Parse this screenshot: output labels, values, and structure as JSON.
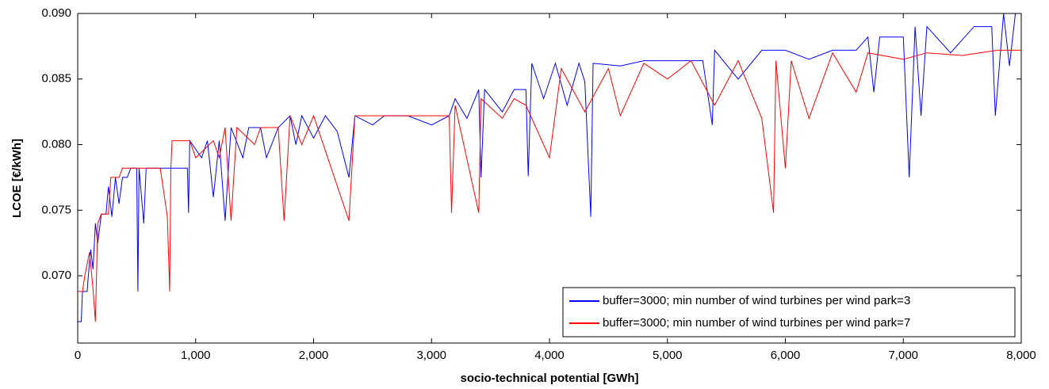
{
  "chart_data": {
    "type": "line",
    "x_label": "socio-technical potential [GWh]",
    "y_label": "LCOE [€/kWh]",
    "xlim": [
      0,
      8000
    ],
    "xticks": [
      0,
      {
        "value": 1000,
        "label": "1,000"
      },
      {
        "value": 2000,
        "label": "2,000"
      },
      {
        "value": 3000,
        "label": "3,000"
      },
      {
        "value": 4000,
        "label": "4,000"
      },
      {
        "value": 5000,
        "label": "5,000"
      },
      {
        "value": 6000,
        "label": "6,000"
      },
      {
        "value": 7000,
        "label": "7,000"
      },
      {
        "value": 8000,
        "label": "8,000"
      }
    ],
    "ylim": [
      0.06487,
      0.09
    ],
    "yticks": [
      {
        "value": 0.07,
        "label": "0.070"
      },
      0.075,
      {
        "value": 0.08,
        "label": "0.080"
      },
      0.085,
      {
        "value": 0.09,
        "label": "0.090"
      }
    ],
    "grid": false,
    "legend": "lower right",
    "series": [
      {
        "name": "buffer=3000; min number of wind turbines per wind park=3",
        "color": "#0000ff",
        "x": [
          0,
          30,
          40,
          80,
          90,
          110,
          130,
          150,
          170,
          200,
          240,
          260,
          290,
          320,
          350,
          380,
          420,
          450,
          500,
          510,
          520,
          560,
          580,
          700,
          780,
          850,
          930,
          940,
          950,
          1050,
          1100,
          1150,
          1200,
          1250,
          1300,
          1400,
          1450,
          1550,
          1600,
          1700,
          1800,
          1850,
          1900,
          2000,
          2100,
          2200,
          2300,
          2350,
          2500,
          2600,
          2800,
          3000,
          3150,
          3200,
          3300,
          3400,
          3420,
          3450,
          3600,
          3700,
          3800,
          3820,
          3850,
          3950,
          4050,
          4150,
          4250,
          4300,
          4350,
          4370,
          4600,
          4800,
          5000,
          5300,
          5380,
          5400,
          5600,
          5800,
          6000,
          6200,
          6400,
          6600,
          6700,
          6750,
          6800,
          7000,
          7050,
          7100,
          7150,
          7200,
          7400,
          7600,
          7750,
          7780,
          7850,
          7900,
          7950,
          8000
        ],
        "values": [
          0.0665,
          0.0665,
          0.0688,
          0.0688,
          0.07,
          0.072,
          0.0705,
          0.074,
          0.0725,
          0.0747,
          0.0747,
          0.0768,
          0.0745,
          0.0775,
          0.0755,
          0.0775,
          0.0775,
          0.0782,
          0.0782,
          0.0688,
          0.0782,
          0.074,
          0.0782,
          0.0782,
          0.0782,
          0.0782,
          0.0782,
          0.0748,
          0.0803,
          0.079,
          0.0803,
          0.076,
          0.0803,
          0.0742,
          0.0813,
          0.079,
          0.0813,
          0.0813,
          0.079,
          0.0813,
          0.0822,
          0.08,
          0.0822,
          0.0805,
          0.0822,
          0.081,
          0.0775,
          0.0822,
          0.0815,
          0.0822,
          0.0822,
          0.0815,
          0.0822,
          0.0835,
          0.082,
          0.0842,
          0.0775,
          0.0842,
          0.0825,
          0.0842,
          0.0842,
          0.0776,
          0.0862,
          0.0835,
          0.0862,
          0.083,
          0.0862,
          0.0848,
          0.0745,
          0.0862,
          0.086,
          0.0864,
          0.0864,
          0.0864,
          0.0815,
          0.0872,
          0.085,
          0.0872,
          0.0872,
          0.0865,
          0.0872,
          0.0872,
          0.0882,
          0.084,
          0.0882,
          0.0882,
          0.0775,
          0.089,
          0.0822,
          0.089,
          0.087,
          0.089,
          0.089,
          0.0822,
          0.09,
          0.086,
          0.09,
          0.09
        ]
      },
      {
        "name": "buffer=3000; min number of wind turbines per wind park=7",
        "color": "#ff0000",
        "x": [
          0,
          40,
          60,
          100,
          130,
          150,
          170,
          200,
          260,
          280,
          350,
          380,
          600,
          700,
          760,
          780,
          790,
          800,
          900,
          950,
          1000,
          1150,
          1200,
          1250,
          1300,
          1350,
          1500,
          1550,
          1700,
          1750,
          1800,
          1900,
          2000,
          2300,
          2350,
          2600,
          3000,
          3150,
          3170,
          3200,
          3400,
          3420,
          3600,
          3700,
          3800,
          4000,
          4100,
          4300,
          4500,
          4600,
          4800,
          5000,
          5200,
          5400,
          5600,
          5800,
          5900,
          5920,
          6000,
          6050,
          6200,
          6400,
          6600,
          6700,
          7000,
          7200,
          7500,
          7800,
          8000
        ],
        "values": [
          0.0688,
          0.0688,
          0.07,
          0.0718,
          0.069,
          0.0665,
          0.074,
          0.0747,
          0.0747,
          0.0775,
          0.0775,
          0.0782,
          0.0782,
          0.0782,
          0.0745,
          0.0688,
          0.0782,
          0.0803,
          0.0803,
          0.0803,
          0.079,
          0.0803,
          0.079,
          0.0813,
          0.0742,
          0.0813,
          0.08,
          0.0813,
          0.0813,
          0.0742,
          0.0822,
          0.08,
          0.0822,
          0.0742,
          0.0822,
          0.0822,
          0.0822,
          0.0822,
          0.0748,
          0.083,
          0.0748,
          0.0835,
          0.082,
          0.0835,
          0.083,
          0.079,
          0.0858,
          0.0825,
          0.0858,
          0.0822,
          0.0862,
          0.085,
          0.0864,
          0.083,
          0.0864,
          0.082,
          0.0748,
          0.0864,
          0.0782,
          0.0864,
          0.082,
          0.087,
          0.084,
          0.087,
          0.0865,
          0.087,
          0.0868,
          0.0872,
          0.0872
        ]
      }
    ]
  }
}
